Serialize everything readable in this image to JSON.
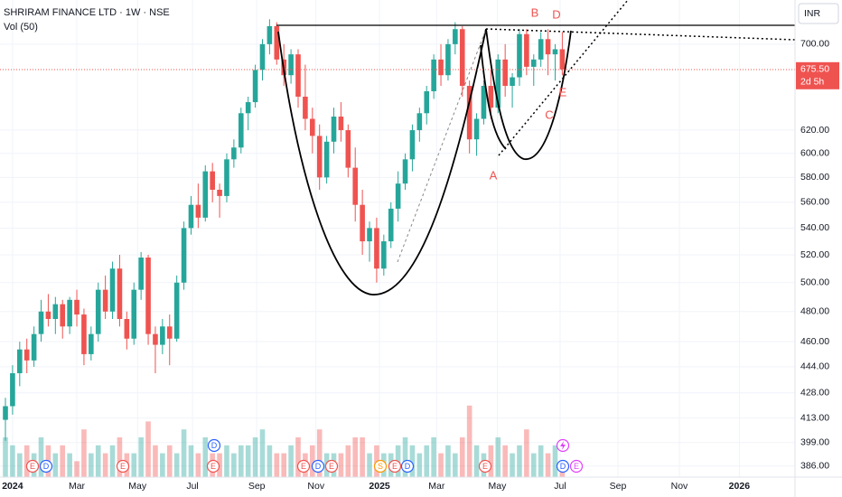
{
  "chart_data": {
    "type": "candlestick",
    "title": "SHRIRAM FINANCE LTD · 1W · NSE",
    "subtitle": "Vol (50)",
    "currency": "INR",
    "last_price": 675.5,
    "last_price_label": "675.50",
    "countdown": "2d 5h",
    "log_scale": true,
    "up_color": "#26a69a",
    "down_color": "#ef5350",
    "ylim": [
      380,
      745
    ],
    "yticks": [
      {
        "value": 386,
        "label": "386.00"
      },
      {
        "value": 399,
        "label": "399.00"
      },
      {
        "value": 413,
        "label": "413.00"
      },
      {
        "value": 428,
        "label": "428.00"
      },
      {
        "value": 444,
        "label": "444.00"
      },
      {
        "value": 460,
        "label": "460.00"
      },
      {
        "value": 480,
        "label": "480.00"
      },
      {
        "value": 500,
        "label": "500.00"
      },
      {
        "value": 520,
        "label": "520.00"
      },
      {
        "value": 540,
        "label": "540.00"
      },
      {
        "value": 560,
        "label": "560.00"
      },
      {
        "value": 580,
        "label": "580.00"
      },
      {
        "value": 600,
        "label": "600.00"
      },
      {
        "value": 620,
        "label": "620.00"
      },
      {
        "value": 700,
        "label": "700.00"
      }
    ],
    "xlim": [
      -0.76,
      110.6
    ],
    "xticks": [
      {
        "value": 1,
        "label": "2024"
      },
      {
        "value": 10,
        "label": "Mar"
      },
      {
        "value": 18.5,
        "label": "May"
      },
      {
        "value": 26.2,
        "label": "Jul"
      },
      {
        "value": 35.2,
        "label": "Sep"
      },
      {
        "value": 43.5,
        "label": "Nov"
      },
      {
        "value": 52.4,
        "label": "2025"
      },
      {
        "value": 60.4,
        "label": "Mar"
      },
      {
        "value": 68.9,
        "label": "May"
      },
      {
        "value": 77.7,
        "label": "Jul"
      },
      {
        "value": 85.8,
        "label": "Sep"
      },
      {
        "value": 94.4,
        "label": "Nov"
      },
      {
        "value": 102.8,
        "label": "2026"
      }
    ],
    "open": [
      412,
      420,
      440,
      455,
      448,
      465,
      480,
      475,
      485,
      470,
      488,
      478,
      452,
      465,
      495,
      480,
      510,
      475,
      462,
      495,
      518,
      465,
      458,
      470,
      462,
      500,
      540,
      558,
      548,
      585,
      570,
      565,
      595,
      605,
      635,
      645,
      675,
      700,
      718,
      685,
      670,
      690,
      650,
      630,
      615,
      580,
      610,
      632,
      620,
      588,
      558,
      530,
      540,
      510,
      530,
      555,
      575,
      595,
      620,
      635,
      655,
      685,
      670,
      700,
      715,
      660,
      612,
      630,
      660,
      640,
      685,
      660,
      668,
      710,
      678,
      685,
      705,
      690,
      695
    ],
    "high": [
      425,
      445,
      460,
      462,
      470,
      488,
      492,
      490,
      488,
      490,
      495,
      482,
      470,
      500,
      505,
      515,
      520,
      480,
      500,
      522,
      520,
      470,
      475,
      478,
      505,
      545,
      565,
      575,
      590,
      592,
      575,
      600,
      612,
      640,
      650,
      680,
      705,
      725,
      722,
      700,
      695,
      695,
      680,
      640,
      625,
      615,
      640,
      645,
      625,
      605,
      570,
      545,
      548,
      535,
      560,
      585,
      600,
      625,
      640,
      660,
      690,
      700,
      705,
      722,
      718,
      665,
      635,
      665,
      675,
      690,
      700,
      672,
      715,
      715,
      690,
      712,
      715,
      700,
      712
    ],
    "low": [
      400,
      415,
      432,
      440,
      444,
      460,
      470,
      465,
      462,
      465,
      470,
      445,
      448,
      460,
      475,
      475,
      470,
      455,
      458,
      488,
      458,
      440,
      452,
      445,
      460,
      495,
      535,
      540,
      545,
      560,
      548,
      560,
      588,
      600,
      620,
      640,
      665,
      690,
      680,
      660,
      662,
      640,
      620,
      600,
      570,
      575,
      600,
      610,
      580,
      545,
      520,
      515,
      500,
      505,
      525,
      545,
      570,
      585,
      610,
      625,
      648,
      660,
      665,
      690,
      650,
      600,
      598,
      625,
      630,
      635,
      650,
      640,
      660,
      670,
      660,
      678,
      670,
      665,
      670
    ],
    "close": [
      420,
      440,
      455,
      448,
      465,
      480,
      475,
      485,
      470,
      488,
      478,
      452,
      465,
      495,
      480,
      510,
      475,
      462,
      495,
      518,
      465,
      458,
      470,
      462,
      500,
      540,
      558,
      548,
      585,
      570,
      565,
      595,
      605,
      635,
      645,
      675,
      700,
      718,
      685,
      670,
      690,
      650,
      630,
      615,
      580,
      610,
      632,
      620,
      588,
      558,
      530,
      540,
      510,
      530,
      555,
      575,
      595,
      620,
      635,
      655,
      685,
      670,
      700,
      715,
      660,
      612,
      630,
      660,
      640,
      685,
      660,
      668,
      710,
      678,
      685,
      705,
      690,
      695,
      675.5
    ],
    "volume": [
      5,
      4,
      3,
      4,
      3,
      5,
      4,
      3,
      4,
      3,
      2,
      6,
      3,
      4,
      3,
      4,
      5,
      3,
      3,
      5,
      7,
      4,
      3,
      4,
      3,
      6,
      4,
      3,
      5,
      3,
      3,
      4,
      3,
      4,
      4,
      5,
      6,
      4,
      3,
      3,
      4,
      5,
      3,
      4,
      6,
      3,
      3,
      3,
      4,
      5,
      5,
      3,
      4,
      3,
      3,
      4,
      5,
      4,
      3,
      4,
      5,
      3,
      4,
      3,
      5,
      9,
      4,
      3,
      4,
      5,
      4,
      3,
      4,
      6,
      3,
      4,
      3,
      4,
      2
    ],
    "vlim": [
      0,
      25
    ],
    "annotations": [
      "A",
      "B",
      "C",
      "D",
      "E"
    ],
    "events": [
      "E",
      "D",
      "E",
      "E",
      "D",
      "E",
      "D",
      "E",
      "S",
      "E",
      "D",
      "E",
      "D",
      "E"
    ]
  }
}
